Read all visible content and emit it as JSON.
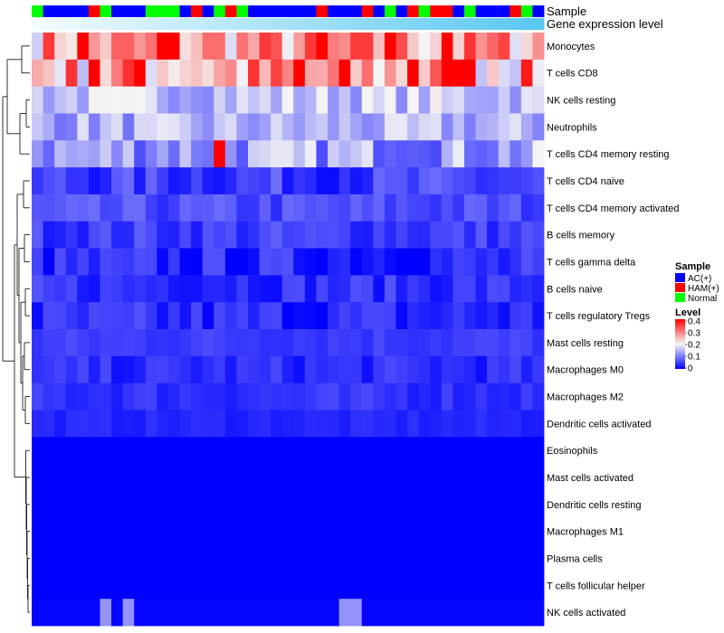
{
  "chart_data": {
    "type": "heatmap",
    "title": "",
    "annotation_labels": {
      "sample": "Sample",
      "gene_expression": "Gene expression level"
    },
    "n_samples": 45,
    "sample_groups": [
      "Normal",
      "AC(+)",
      "AC(+)",
      "AC(+)",
      "AC(+)",
      "HAM(+)",
      "Normal",
      "AC(+)",
      "AC(+)",
      "AC(+)",
      "Normal",
      "Normal",
      "Normal",
      "AC(+)",
      "HAM(+)",
      "AC(+)",
      "Normal",
      "HAM(+)",
      "Normal",
      "AC(+)",
      "AC(+)",
      "AC(+)",
      "AC(+)",
      "AC(+)",
      "AC(+)",
      "HAM(+)",
      "AC(+)",
      "AC(+)",
      "AC(+)",
      "HAM(+)",
      "AC(+)",
      "Normal",
      "AC(+)",
      "HAM(+)",
      "Normal",
      "HAM(+)",
      "HAM(+)",
      "AC(+)",
      "Normal",
      "AC(+)",
      "AC(+)",
      "AC(+)",
      "HAM(+)",
      "Normal",
      "AC(+)"
    ],
    "group_colors": {
      "AC(+)": "#0000FF",
      "HAM(+)": "#FF0000",
      "Normal": "#00FF00"
    },
    "gene_expression_bar": [
      0.1,
      0.11,
      0.12,
      0.13,
      0.14,
      0.15,
      0.16,
      0.17,
      0.18,
      0.19,
      0.2,
      0.21,
      0.22,
      0.23,
      0.24,
      0.25,
      0.26,
      0.27,
      0.28,
      0.29,
      0.3,
      0.31,
      0.32,
      0.33,
      0.34,
      0.35,
      0.36,
      0.37,
      0.38,
      0.39,
      0.4,
      0.41,
      0.42,
      0.43,
      0.44,
      0.45,
      0.46,
      0.47,
      0.48,
      0.49,
      0.5,
      0.51,
      0.52,
      0.53,
      0.54
    ],
    "expression_colors": {
      "low": "#F2FBFE",
      "high": "#5BC8F2"
    },
    "rows": [
      "Monocytes",
      "T cells CD8",
      "NK cells resting",
      "Neutrophils",
      "T cells CD4 memory resting",
      "T cells CD4 naive",
      "T cells CD4 memory activated",
      "B cells memory",
      "T cells gamma delta",
      "B cells naive",
      "T cells regulatory  Tregs",
      "Mast cells resting",
      "Macrophages M0",
      "Macrophages M2",
      "Dendritic cells activated",
      "Eosinophils",
      "Mast cells activated",
      "Dendritic cells resting",
      "Macrophages M1",
      "Plasma cells",
      "T cells follicular helper",
      "NK cells activated"
    ],
    "row_base_levels": [
      0.27,
      0.26,
      0.16,
      0.14,
      0.13,
      0.05,
      0.06,
      0.05,
      0.03,
      0.04,
      0.03,
      0.05,
      0.035,
      0.04,
      0.03,
      0.0,
      0.0,
      0.0,
      0.0,
      0.0,
      0.0,
      0.005
    ],
    "row_variability": [
      0.1,
      0.12,
      0.05,
      0.05,
      0.07,
      0.04,
      0.03,
      0.03,
      0.04,
      0.03,
      0.04,
      0.015,
      0.025,
      0.02,
      0.01,
      0.0,
      0.0,
      0.0,
      0.0,
      0.0,
      0.0,
      0.0
    ],
    "sparse_highlights": [
      {
        "row": 0,
        "cols": [
          4,
          11,
          12,
          25,
          31,
          36
        ],
        "value": 0.4
      },
      {
        "row": 1,
        "cols": [
          5,
          9,
          23,
          27,
          33,
          36,
          37,
          38
        ],
        "value": 0.4
      },
      {
        "row": 4,
        "cols": [
          16
        ],
        "value": 0.4
      },
      {
        "row": 21,
        "cols": [
          6,
          8,
          27,
          28
        ],
        "value": 0.12
      }
    ],
    "color_scale": {
      "min": 0,
      "mid": 0.2,
      "max": 0.4,
      "low_color": "#0000FF",
      "mid_color": "#F5F5F5",
      "high_color": "#FF0000"
    },
    "legend": {
      "sample_title": "Sample",
      "sample_entries": [
        "AC(+)",
        "HAM(+)",
        "Normal"
      ],
      "level_title": "Level",
      "level_ticks": [
        "0.4",
        "0.3",
        "0.2",
        "0.1",
        "0"
      ],
      "placement": "right"
    }
  }
}
